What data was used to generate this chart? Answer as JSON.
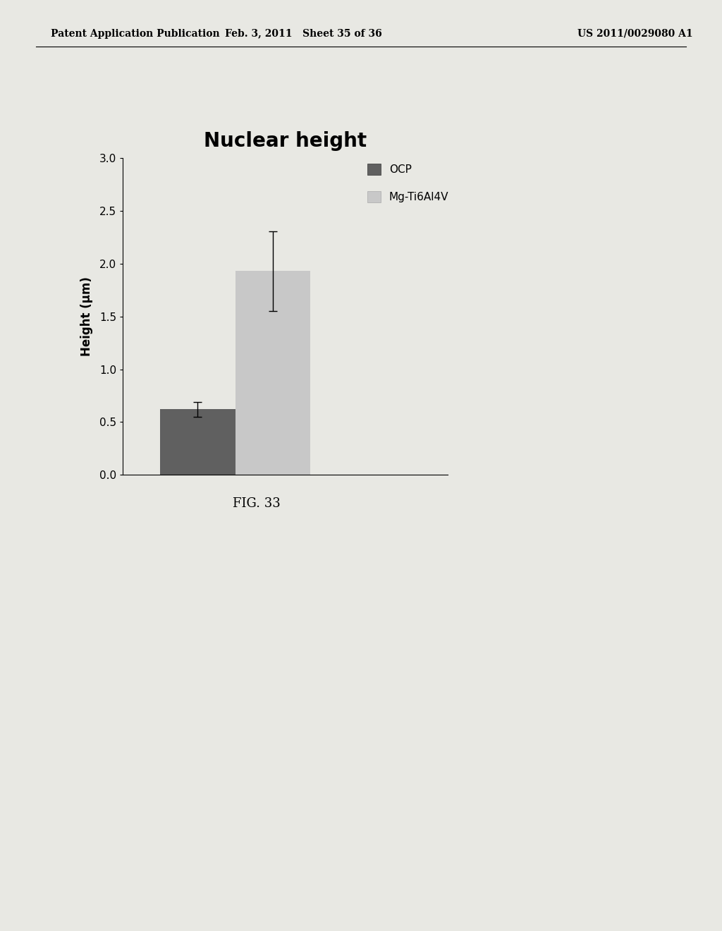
{
  "title": "Nuclear height",
  "ylabel": "Height (μm)",
  "ylim": [
    0.0,
    3.0
  ],
  "yticks": [
    0.0,
    0.5,
    1.0,
    1.5,
    2.0,
    2.5,
    3.0
  ],
  "values": [
    0.62,
    1.93
  ],
  "errors": [
    0.07,
    0.38
  ],
  "bar_colors": [
    "#606060",
    "#c8c8c8"
  ],
  "bar_width": 0.12,
  "bar_positions": [
    0.25,
    0.37
  ],
  "legend_labels": [
    "OCP",
    "Mg-Ti6Al4V"
  ],
  "caption": "FIG. 33",
  "header_left": "Patent Application Publication",
  "header_mid": "Feb. 3, 2011   Sheet 35 of 36",
  "header_right": "US 2011/0029080 A1",
  "page_bg": "#e8e8e3",
  "chart_bg": "#e8e8e3",
  "title_fontsize": 20,
  "axis_fontsize": 12,
  "tick_fontsize": 11,
  "caption_fontsize": 13,
  "header_fontsize": 10
}
